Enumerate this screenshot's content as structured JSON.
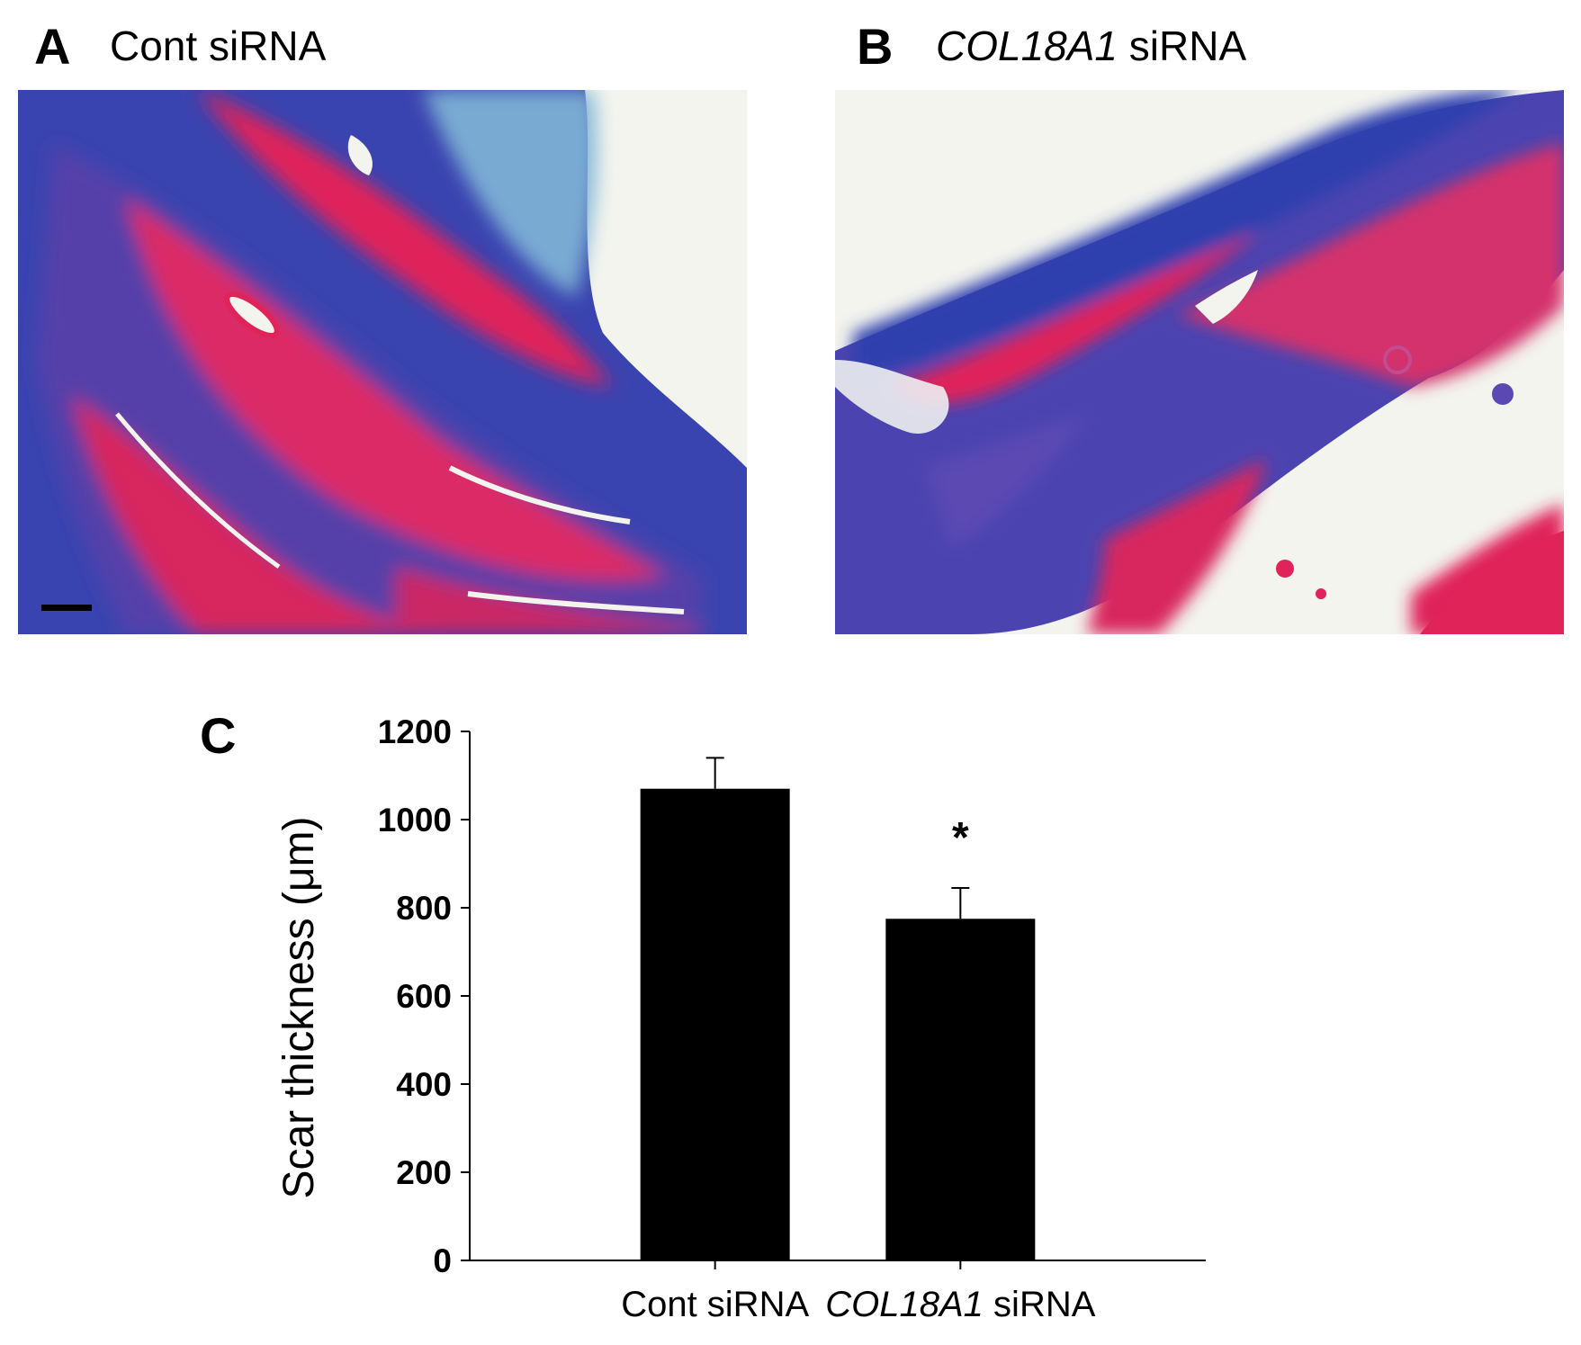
{
  "panels": {
    "a": {
      "letter": "A",
      "title": "Cont siRNA"
    },
    "b": {
      "letter": "B",
      "title_italic": "COL18A1",
      "title_rest": " siRNA"
    },
    "c": {
      "letter": "C"
    }
  },
  "colors": {
    "collagen_blue": "#2f3fae",
    "muscle_red": "#e0245a",
    "background": "#f3f4ee",
    "bar": "#000000"
  },
  "chart_data": {
    "type": "bar",
    "categories": [
      "Cont siRNA",
      "COL18A1 siRNA"
    ],
    "category_italic_part": [
      "",
      "COL18A1"
    ],
    "category_plain_part": [
      "Cont siRNA",
      " siRNA"
    ],
    "values": [
      1070,
      775
    ],
    "error": [
      70,
      70
    ],
    "annotations": [
      "",
      "*"
    ],
    "ylabel": "Scar thickness (μm)",
    "xlabel": "",
    "ylim": [
      0,
      1200
    ],
    "yticks": [
      0,
      200,
      400,
      600,
      800,
      1000,
      1200
    ],
    "grid": false
  }
}
